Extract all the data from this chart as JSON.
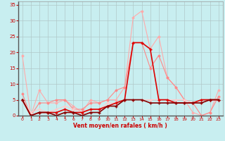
{
  "xlabel": "Vent moyen/en rafales ( km/h )",
  "xlim": [
    -0.5,
    23.5
  ],
  "ylim": [
    0,
    36
  ],
  "yticks": [
    0,
    5,
    10,
    15,
    20,
    25,
    30,
    35
  ],
  "xticks": [
    0,
    1,
    2,
    3,
    4,
    5,
    6,
    7,
    8,
    9,
    10,
    11,
    12,
    13,
    14,
    15,
    16,
    17,
    18,
    19,
    20,
    21,
    22,
    23
  ],
  "bg_color": "#c8eef0",
  "grid_color": "#b0c8c8",
  "series": [
    {
      "x": [
        0,
        1,
        2,
        3,
        4,
        5,
        6,
        7,
        8,
        9,
        10,
        11,
        12,
        13,
        14,
        15,
        16,
        17,
        18,
        19,
        20,
        21,
        22,
        23
      ],
      "y": [
        19,
        0,
        8,
        4,
        4,
        5,
        3,
        1,
        5,
        4,
        5,
        5,
        9,
        31,
        33,
        21,
        25,
        12,
        9,
        5,
        1,
        0,
        1,
        8
      ],
      "color": "#ffaaaa",
      "lw": 0.8,
      "marker": "D",
      "ms": 1.5
    },
    {
      "x": [
        0,
        1,
        2,
        3,
        4,
        5,
        6,
        7,
        8,
        9,
        10,
        11,
        12,
        13,
        14,
        15,
        16,
        17,
        18,
        19,
        20,
        21,
        22,
        23
      ],
      "y": [
        7,
        0,
        4,
        4,
        5,
        5,
        2,
        2,
        4,
        4,
        5,
        8,
        9,
        23,
        23,
        15,
        19,
        12,
        9,
        5,
        4,
        0,
        1,
        6
      ],
      "color": "#ff8888",
      "lw": 0.8,
      "marker": "D",
      "ms": 1.5
    },
    {
      "x": [
        0,
        1,
        2,
        3,
        4,
        5,
        6,
        7,
        8,
        9,
        10,
        11,
        12,
        13,
        14,
        15,
        16,
        17,
        18,
        19,
        20,
        21,
        22,
        23
      ],
      "y": [
        5,
        1,
        2,
        1,
        2,
        3,
        2,
        1,
        2,
        2,
        4,
        4,
        5,
        5,
        5,
        5,
        5,
        5,
        5,
        5,
        4,
        4,
        5,
        5
      ],
      "color": "#ffcccc",
      "lw": 0.8,
      "marker": "D",
      "ms": 1.5
    },
    {
      "x": [
        0,
        1,
        2,
        3,
        4,
        5,
        6,
        7,
        8,
        9,
        10,
        11,
        12,
        13,
        14,
        15,
        16,
        17,
        18,
        19,
        20,
        21,
        22,
        23
      ],
      "y": [
        5,
        0,
        1,
        1,
        1,
        2,
        1,
        1,
        2,
        2,
        3,
        4,
        5,
        23,
        23,
        21,
        5,
        5,
        4,
        4,
        4,
        5,
        5,
        5
      ],
      "color": "#dd0000",
      "lw": 1.2,
      "marker": "+",
      "ms": 3
    },
    {
      "x": [
        0,
        1,
        2,
        3,
        4,
        5,
        6,
        7,
        8,
        9,
        10,
        11,
        12,
        13,
        14,
        15,
        16,
        17,
        18,
        19,
        20,
        21,
        22,
        23
      ],
      "y": [
        5,
        0,
        1,
        1,
        0,
        1,
        1,
        0,
        1,
        1,
        3,
        3,
        5,
        5,
        5,
        4,
        4,
        4,
        4,
        4,
        4,
        4,
        5,
        5
      ],
      "color": "#880000",
      "lw": 1.2,
      "marker": "+",
      "ms": 3
    }
  ]
}
